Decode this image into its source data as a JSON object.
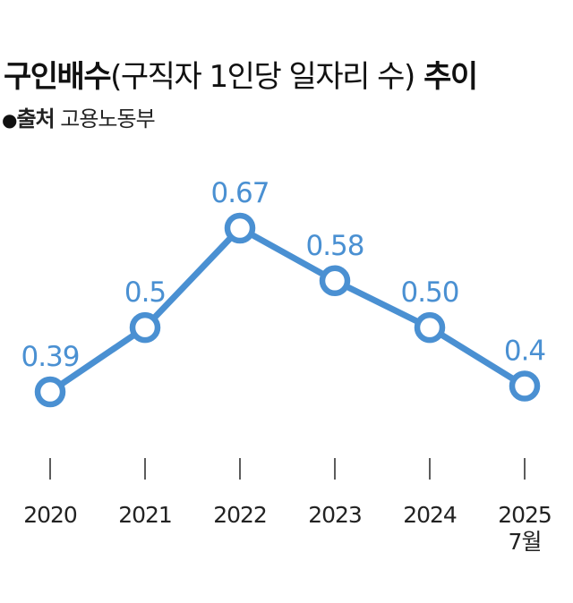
{
  "header": {
    "title_bold": "구인배수",
    "title_paren": "(구직자 1인당 일자리 수)",
    "title_tail": "추이",
    "source_bullet": "●",
    "source_label": "출처",
    "source_value": "고용노동부"
  },
  "colors": {
    "line": "#4a90d2",
    "marker_fill": "#ffffff",
    "value_text": "#4a90d2",
    "tick_text": "#222222"
  },
  "chart_data": {
    "type": "line",
    "title": "구인배수(구직자 1인당 일자리 수) 추이",
    "xlabel": "",
    "ylabel": "",
    "categories": [
      "2020",
      "2021",
      "2022",
      "2023",
      "2024",
      "2025"
    ],
    "category_sublabels": [
      "",
      "",
      "",
      "",
      "",
      "7월"
    ],
    "values": [
      0.39,
      0.5,
      0.67,
      0.58,
      0.5,
      0.4
    ],
    "data_labels": [
      "0.39",
      "0.5",
      "0.67",
      "0.58",
      "0.50",
      "0.4"
    ],
    "grid": false,
    "legend": "none"
  }
}
